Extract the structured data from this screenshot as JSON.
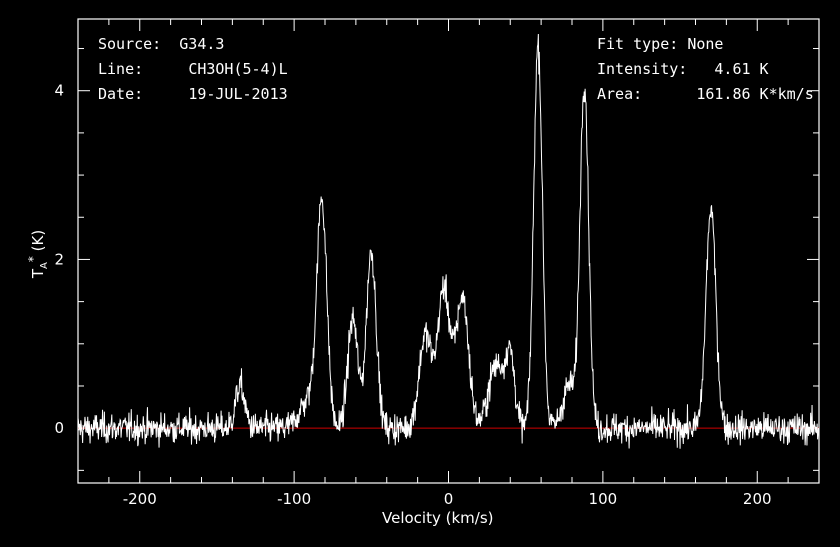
{
  "header_left": {
    "source_label": "Source:",
    "source_value": "G34.3",
    "line_label": "Line:",
    "line_value": "CH3OH(5-4)L",
    "date_label": "Date:",
    "date_value": "19-JUL-2013"
  },
  "header_right": {
    "fit_label": "Fit type:",
    "fit_value": "None",
    "intensity_label": "Intensity:",
    "intensity_value": "4.61 K",
    "area_label": "Area:",
    "area_value": "161.86 K*km/s"
  },
  "chart_data": {
    "type": "line",
    "xlabel": "Velocity (km/s)",
    "ylabel_main": "T",
    "ylabel_sub": "A",
    "ylabel_sup": "*",
    "ylabel_unit": "(K)",
    "xlim": [
      -240,
      240
    ],
    "ylim": [
      -0.65,
      4.85
    ],
    "xticks": [
      -200,
      -100,
      0,
      100,
      200
    ],
    "yticks": [
      0,
      2,
      4
    ],
    "baseline": 0,
    "colors": {
      "spectrum": "#ffffff",
      "baseline": "#d00000",
      "axes": "#ffffff",
      "background": "#000000"
    },
    "noise_rms": 0.09,
    "peaks": [
      {
        "v": -135,
        "height": 0.5,
        "width": 3
      },
      {
        "v": -90,
        "height": 0.35,
        "width": 6
      },
      {
        "v": -82,
        "height": 2.6,
        "width": 3.2
      },
      {
        "v": -62,
        "height": 1.3,
        "width": 3.2
      },
      {
        "v": -50,
        "height": 2.1,
        "width": 3.2
      },
      {
        "v": -15,
        "height": 1.1,
        "width": 4
      },
      {
        "v": -3,
        "height": 1.65,
        "width": 4
      },
      {
        "v": 9,
        "height": 1.55,
        "width": 4
      },
      {
        "v": 31,
        "height": 0.75,
        "width": 5
      },
      {
        "v": 40,
        "height": 0.8,
        "width": 3
      },
      {
        "v": 58,
        "height": 4.55,
        "width": 2.8
      },
      {
        "v": 78,
        "height": 0.5,
        "width": 4
      },
      {
        "v": 88,
        "height": 4.1,
        "width": 2.8
      },
      {
        "v": 170,
        "height": 2.6,
        "width": 3.2
      }
    ]
  }
}
